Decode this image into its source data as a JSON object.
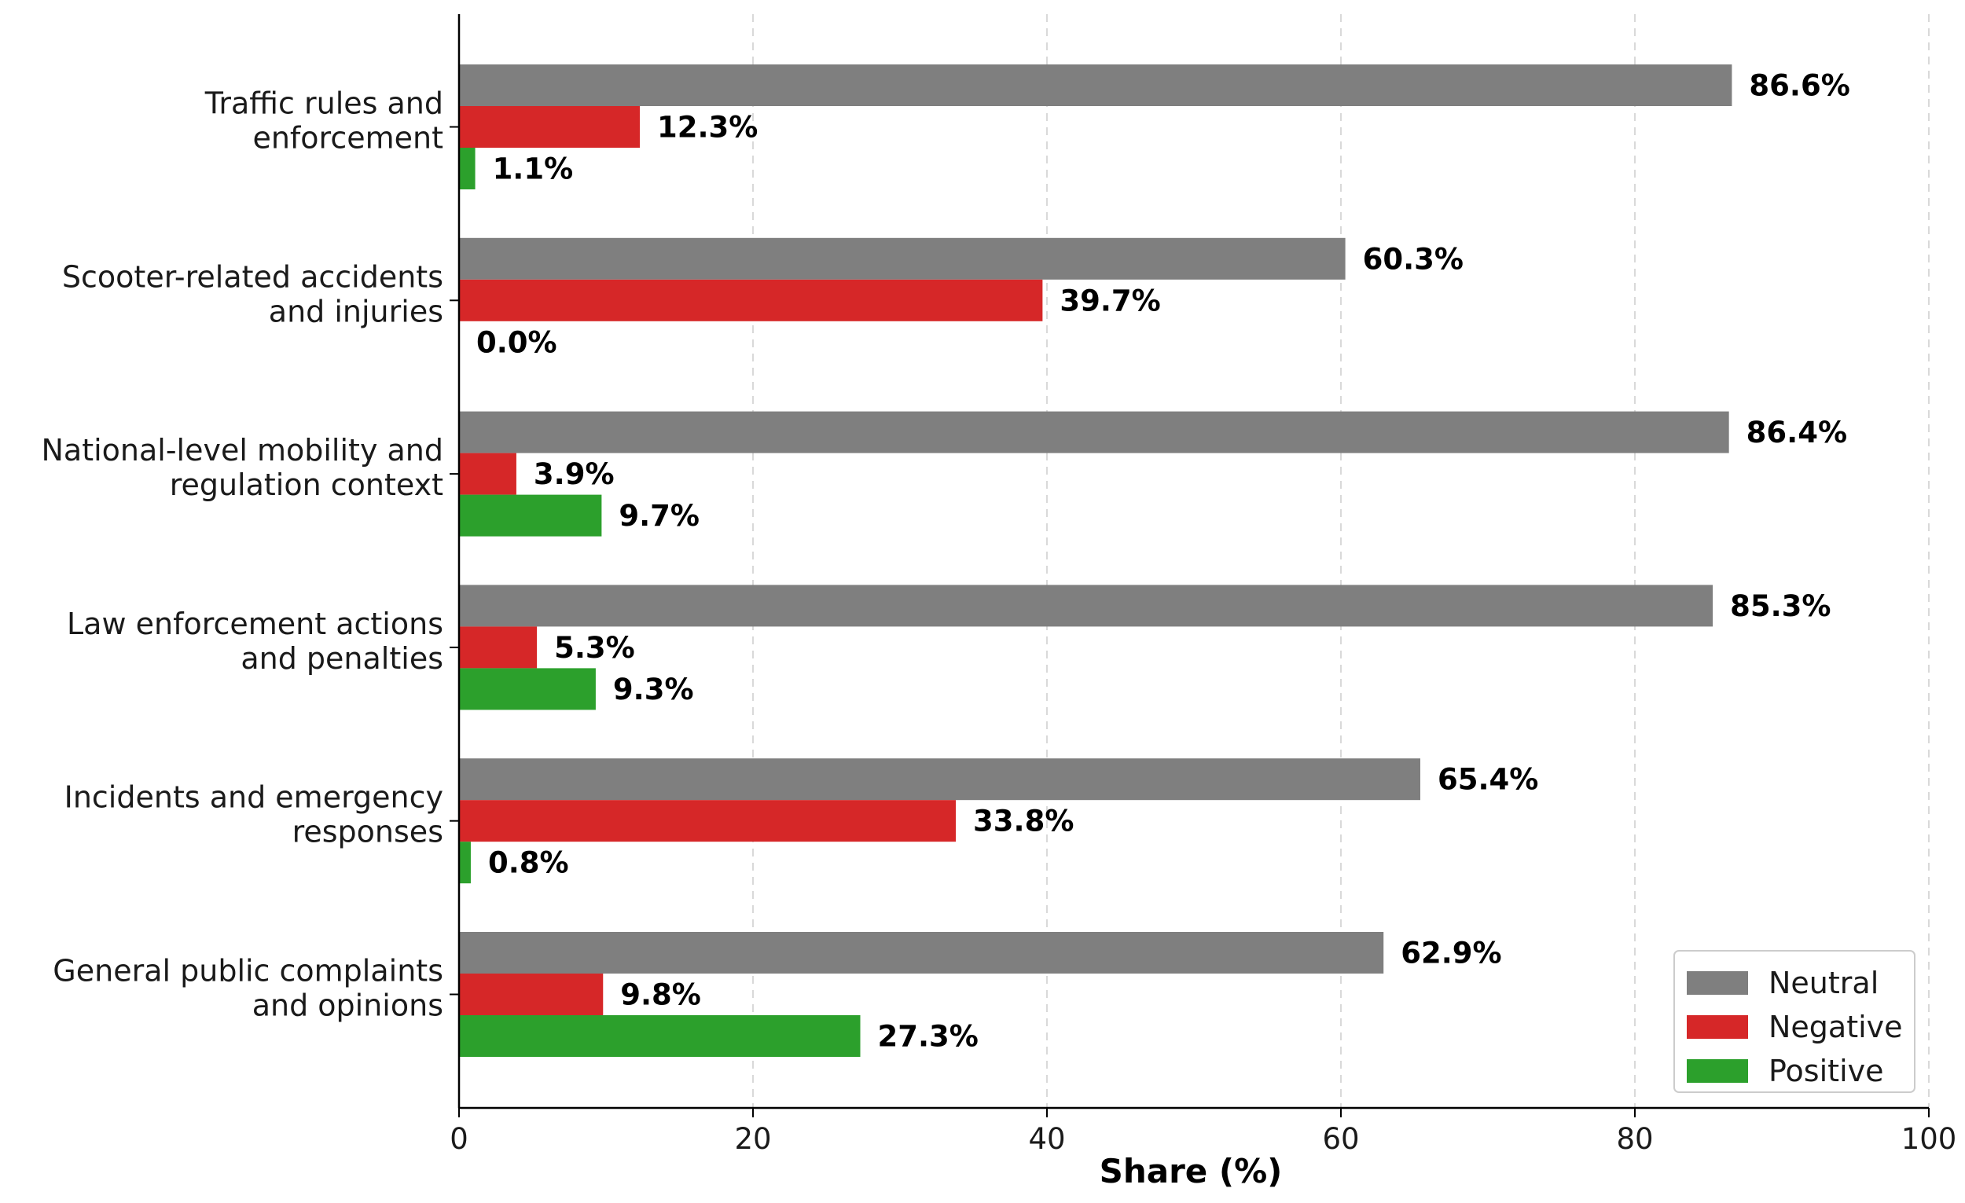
{
  "chart_data": {
    "type": "bar",
    "orientation": "horizontal",
    "categories": [
      [
        "Traffic rules and",
        "enforcement"
      ],
      [
        "Scooter-related accidents",
        "and injuries"
      ],
      [
        "National-level mobility and",
        "regulation context"
      ],
      [
        "Law enforcement actions",
        "and penalties"
      ],
      [
        "Incidents and emergency",
        "responses"
      ],
      [
        "General public complaints",
        "and opinions"
      ]
    ],
    "series": [
      {
        "name": "Neutral",
        "color": "#7f7f7f",
        "values": [
          86.6,
          60.3,
          86.4,
          85.3,
          65.4,
          62.9
        ],
        "labels": [
          "86.6%",
          "60.3%",
          "86.4%",
          "85.3%",
          "65.4%",
          "62.9%"
        ]
      },
      {
        "name": "Negative",
        "color": "#d62728",
        "values": [
          12.3,
          39.7,
          3.9,
          5.3,
          33.8,
          9.8
        ],
        "labels": [
          "12.3%",
          "39.7%",
          "3.9%",
          "5.3%",
          "33.8%",
          "9.8%"
        ]
      },
      {
        "name": "Positive",
        "color": "#2ca02c",
        "values": [
          1.1,
          0.0,
          9.7,
          9.3,
          0.8,
          27.3
        ],
        "labels": [
          "1.1%",
          "0.0%",
          "9.7%",
          "9.3%",
          "0.8%",
          "27.3%"
        ]
      }
    ],
    "xlabel": "Share (%)",
    "ylabel": "",
    "xlim": [
      0,
      100
    ],
    "xticks": [
      0,
      20,
      40,
      60,
      80,
      100
    ],
    "xtick_labels": [
      "0",
      "20",
      "40",
      "60",
      "80",
      "100"
    ],
    "grid": "vertical dashed",
    "legend_position": "bottom-right"
  }
}
